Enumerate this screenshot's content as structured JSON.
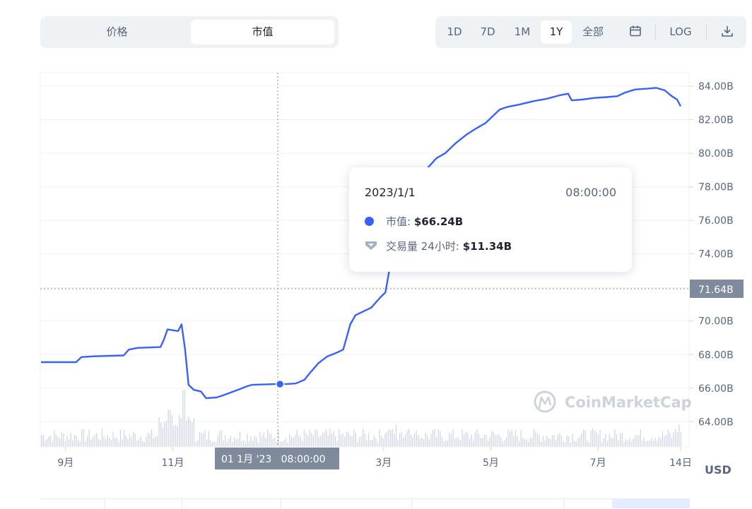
{
  "tabs": {
    "items": [
      "价格",
      "市值"
    ],
    "active": 1
  },
  "ranges": {
    "items": [
      "1D",
      "7D",
      "1M",
      "1Y",
      "全部"
    ],
    "active": 3,
    "log_label": "LOG",
    "calendar_icon": "calendar-icon",
    "download_icon": "download-icon"
  },
  "tooltip": {
    "date": "2023/1/1",
    "time": "08:00:00",
    "mcap_label": "市值",
    "mcap_value": "$66.24B",
    "volume_label": "交易量 24小时",
    "volume_value": "$11.34B"
  },
  "crosshair": {
    "x_label": "01 1月 '23   08:00:00",
    "y_label": "71.64B"
  },
  "watermark": "CoinMarketCap",
  "currency": "USD",
  "colors": {
    "line": "#3861fb",
    "volume": "#cfd6e4",
    "crosshair_label_bg": "#808a9d"
  },
  "chart_data": {
    "type": "line",
    "ylim": [
      62.5,
      84.8
    ],
    "ytick_labels": [
      "84.00B",
      "82.00B",
      "80.00B",
      "78.00B",
      "76.00B",
      "74.00B",
      "72.00B",
      "70.00B",
      "68.00B",
      "66.00B",
      "64.00B"
    ],
    "ytick_values": [
      84,
      82,
      80,
      78,
      76,
      74,
      72,
      70,
      68,
      66,
      64
    ],
    "xtick_labels": [
      "9月",
      "11月",
      "1月",
      "3月",
      "5月",
      "7月",
      "14日"
    ],
    "xtick_days": [
      14,
      75,
      136,
      195,
      256,
      317,
      364
    ],
    "x_days_max": 370,
    "highlight": {
      "day": 136,
      "value": 66.24
    },
    "series": [
      {
        "values": [
          [
            0,
            67.55
          ],
          [
            20,
            67.55
          ],
          [
            23,
            67.85
          ],
          [
            30,
            67.9
          ],
          [
            47,
            67.95
          ],
          [
            50,
            68.3
          ],
          [
            55,
            68.4
          ],
          [
            68,
            68.45
          ],
          [
            70,
            68.9
          ],
          [
            72,
            69.5
          ],
          [
            78,
            69.4
          ],
          [
            80,
            69.8
          ],
          [
            82,
            68.3
          ],
          [
            84,
            66.2
          ],
          [
            87,
            65.9
          ],
          [
            91,
            65.8
          ],
          [
            94,
            65.4
          ],
          [
            100,
            65.45
          ],
          [
            103,
            65.55
          ],
          [
            107,
            65.7
          ],
          [
            112,
            65.9
          ],
          [
            117,
            66.1
          ],
          [
            120,
            66.2
          ],
          [
            133,
            66.24
          ],
          [
            136,
            66.24
          ],
          [
            140,
            66.25
          ],
          [
            145,
            66.28
          ],
          [
            150,
            66.5
          ],
          [
            153,
            66.9
          ],
          [
            158,
            67.5
          ],
          [
            163,
            67.9
          ],
          [
            168,
            68.1
          ],
          [
            172,
            68.3
          ],
          [
            176,
            69.8
          ],
          [
            179,
            70.35
          ],
          [
            183,
            70.55
          ],
          [
            188,
            70.8
          ],
          [
            193,
            71.4
          ],
          [
            196,
            71.7
          ],
          [
            199,
            73.5
          ],
          [
            202,
            75.0
          ],
          [
            205,
            76.5
          ],
          [
            208,
            77.5
          ],
          [
            213,
            78.5
          ],
          [
            219,
            79.0
          ],
          [
            225,
            79.7
          ],
          [
            230,
            80.0
          ],
          [
            236,
            80.6
          ],
          [
            242,
            81.1
          ],
          [
            248,
            81.5
          ],
          [
            253,
            81.8
          ],
          [
            257,
            82.2
          ],
          [
            261,
            82.6
          ],
          [
            265,
            82.75
          ],
          [
            272,
            82.9
          ],
          [
            280,
            83.1
          ],
          [
            288,
            83.25
          ],
          [
            295,
            83.45
          ],
          [
            300,
            83.55
          ],
          [
            302,
            83.15
          ],
          [
            308,
            83.2
          ],
          [
            315,
            83.3
          ],
          [
            322,
            83.35
          ],
          [
            328,
            83.4
          ],
          [
            332,
            83.6
          ],
          [
            338,
            83.8
          ],
          [
            345,
            83.85
          ],
          [
            350,
            83.9
          ],
          [
            355,
            83.75
          ],
          [
            359,
            83.4
          ],
          [
            362,
            83.2
          ],
          [
            364,
            82.8
          ]
        ]
      }
    ]
  }
}
